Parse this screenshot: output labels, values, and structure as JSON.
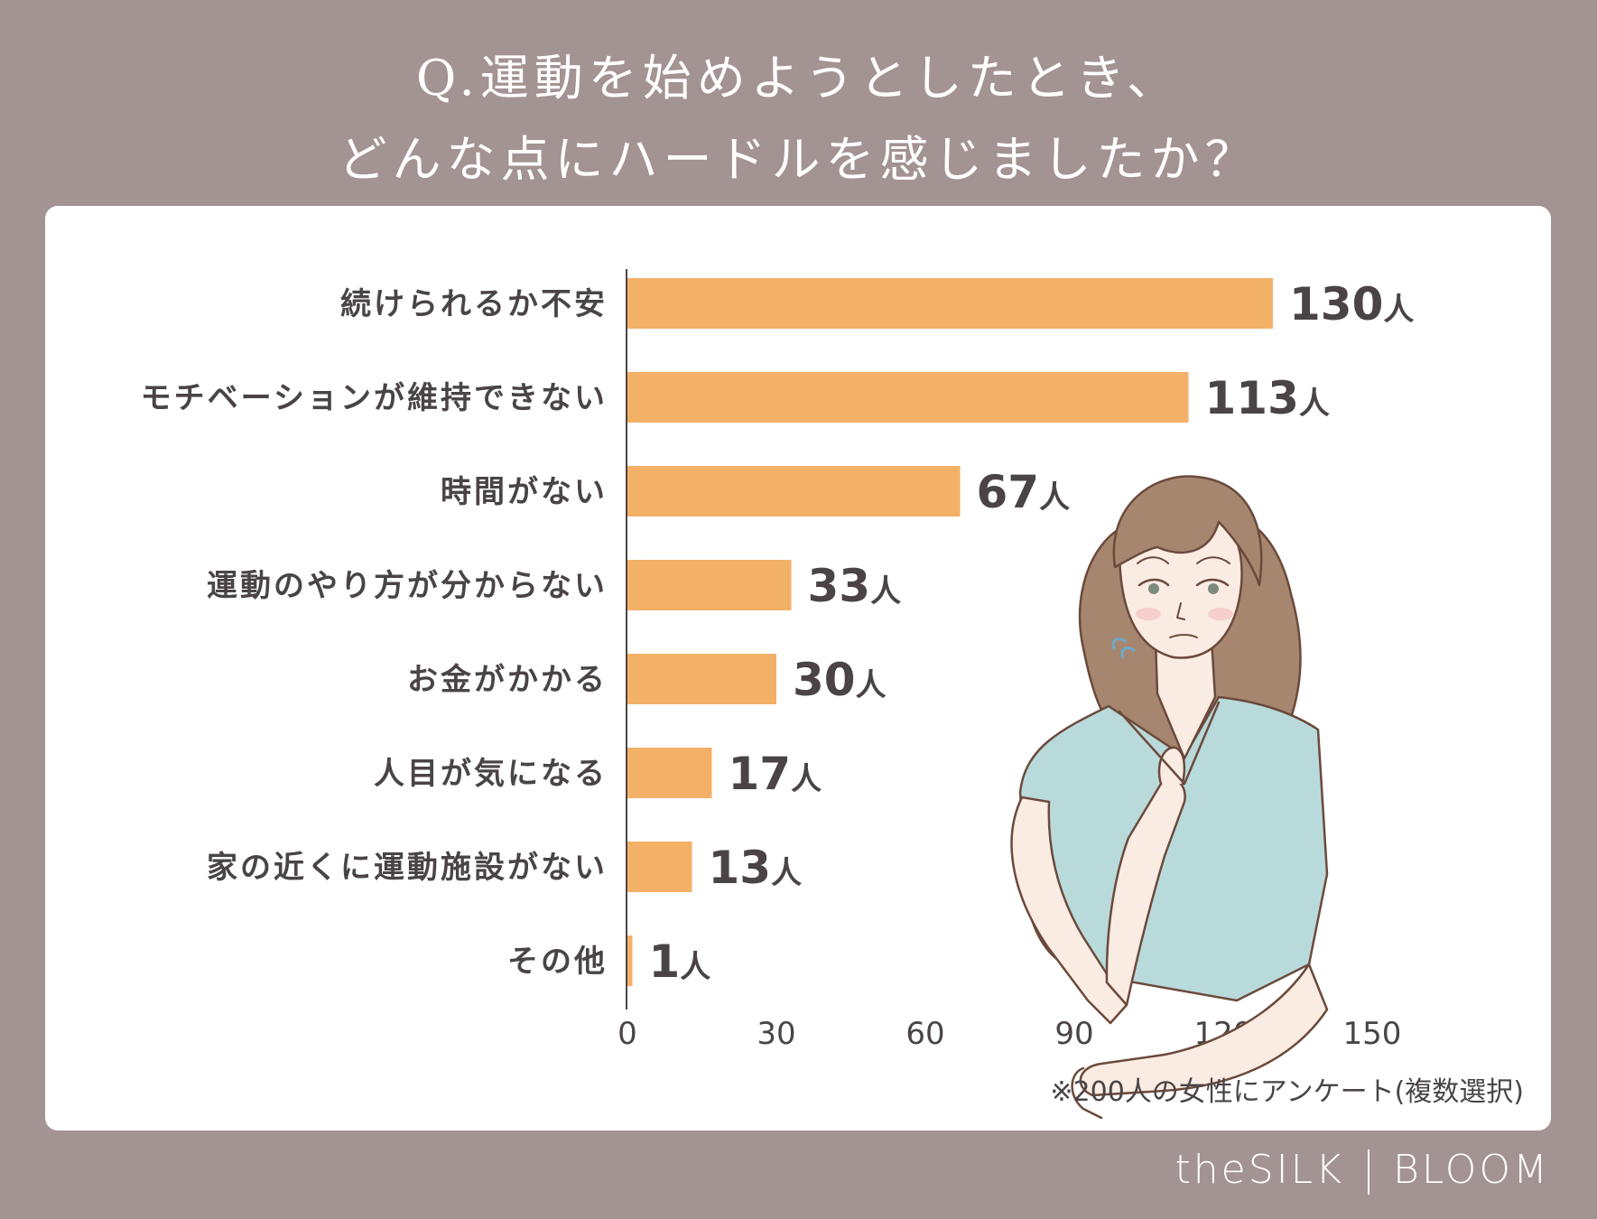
{
  "title": {
    "line1": "Q.運動を始めようとしたとき、",
    "line2": "どんな点にハードルを感じましたか？"
  },
  "colors": {
    "background": "#a49393",
    "bar": "#f3b067",
    "text": "#4a4446"
  },
  "chart_data": {
    "type": "bar",
    "orientation": "horizontal",
    "categories": [
      "続けられるか不安",
      "モチベーションが維持できない",
      "時間がない",
      "運動のやり方が分からない",
      "お金がかかる",
      "人目が気になる",
      "家の近くに運動施設がない",
      "その他"
    ],
    "values": [
      130,
      113,
      67,
      33,
      30,
      17,
      13,
      1
    ],
    "value_labels": [
      "130",
      "113",
      "67",
      "33",
      "30",
      "17",
      "13",
      "1"
    ],
    "unit": "人",
    "xlim": [
      0,
      150
    ],
    "xticks": [
      "0",
      "30",
      "60",
      "90",
      "120",
      "150"
    ],
    "xtick_values": [
      0,
      30,
      60,
      90,
      120,
      150
    ],
    "grid": false
  },
  "footnote": "※200人の女性にアンケート(複数選択)",
  "logo": {
    "left": "theSILK",
    "right": "BLOOM"
  },
  "illustration": "worried-woman-icon"
}
